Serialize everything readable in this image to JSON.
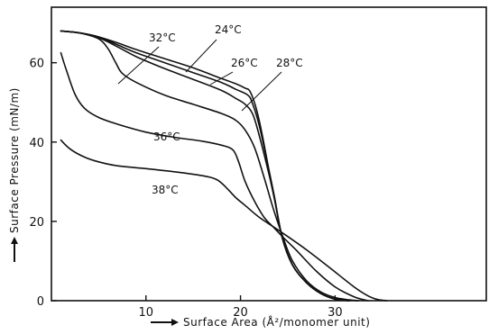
{
  "chart_data": {
    "type": "line",
    "xlabel": "Surface Area (Å²/monomer unit)",
    "ylabel": "Surface Pressure (mN/m)",
    "xlim": [
      0,
      46
    ],
    "ylim": [
      0,
      74
    ],
    "xticks": [
      10,
      20,
      30
    ],
    "yticks": [
      0,
      20,
      40,
      60
    ],
    "series": [
      {
        "name": "24°C",
        "label": "24°C",
        "x": [
          1,
          3,
          5,
          7,
          9,
          12,
          15,
          18,
          19.5,
          20.5,
          21,
          21.6,
          22.2,
          23,
          23.6,
          24.4,
          25.5,
          27,
          28.5,
          30,
          31.5
        ],
        "y": [
          68,
          67.5,
          66.5,
          65,
          63.3,
          61,
          58.7,
          56,
          54.7,
          53.6,
          52.8,
          49,
          43,
          33,
          26,
          16,
          9,
          4.5,
          1.8,
          0.4,
          0
        ]
      },
      {
        "name": "26°C",
        "label": "26°C",
        "x": [
          1,
          3,
          5,
          7,
          9,
          12,
          15,
          18,
          19.5,
          20.8,
          21.3,
          22,
          23,
          23.6,
          24.4,
          25.5,
          27,
          28.5,
          30,
          31.5
        ],
        "y": [
          68,
          67.5,
          66.5,
          64.5,
          62.5,
          60,
          57.5,
          55,
          53.3,
          51.8,
          49.5,
          44,
          33,
          26,
          16,
          9,
          4.5,
          1.8,
          0.4,
          0
        ]
      },
      {
        "name": "28°C",
        "label": "28°C",
        "x": [
          1,
          3,
          5,
          7,
          9,
          12,
          15,
          18,
          19.5,
          20.5,
          21.3,
          22,
          23,
          23.6,
          24.4,
          25.5,
          27,
          28.5,
          30,
          31.5
        ],
        "y": [
          68,
          67.5,
          66.3,
          64,
          61.5,
          58.5,
          55.8,
          53,
          51,
          49.5,
          47,
          41.5,
          32,
          25.5,
          16,
          9,
          4.5,
          1.8,
          0.4,
          0
        ]
      },
      {
        "name": "32°C",
        "label": "32°C",
        "x": [
          1,
          3,
          5,
          6,
          6.8,
          7.5,
          9,
          12,
          15,
          18,
          19.5,
          20.5,
          21.5,
          22.5,
          23.5,
          24.5,
          25.5,
          27,
          28.5,
          30,
          31.5,
          32.5
        ],
        "y": [
          68,
          67.5,
          66,
          63.5,
          60,
          57.3,
          55,
          51.8,
          49.5,
          47.2,
          45.5,
          43,
          38.5,
          31,
          23,
          16,
          10,
          5,
          2.2,
          0.8,
          0.2,
          0
        ]
      },
      {
        "name": "36°C",
        "label": "36°C",
        "x": [
          1,
          1.6,
          2.5,
          3.5,
          5,
          7,
          10,
          13,
          16,
          18,
          19.2,
          19.8,
          20.5,
          21.5,
          22.5,
          23.5,
          24.5,
          26,
          28,
          30,
          32,
          33.5
        ],
        "y": [
          62.5,
          58,
          52,
          48.5,
          46.2,
          44.5,
          42.5,
          41.2,
          40.2,
          39.2,
          38,
          35,
          30,
          25,
          21,
          18.5,
          16,
          12.5,
          7.5,
          3.5,
          1,
          0
        ]
      },
      {
        "name": "38°C",
        "label": "38°C",
        "x": [
          1,
          2,
          3.5,
          5,
          7,
          10,
          13,
          16,
          17.5,
          18.5,
          19.5,
          20.5,
          22,
          24.5,
          27,
          29.5,
          32,
          33.5,
          34.5,
          35.5
        ],
        "y": [
          40.5,
          38.2,
          36.2,
          35,
          34,
          33.3,
          32.5,
          31.5,
          30.5,
          28.5,
          26,
          24,
          21,
          17,
          12.8,
          8.2,
          3.5,
          1.2,
          0.3,
          0
        ]
      }
    ]
  }
}
